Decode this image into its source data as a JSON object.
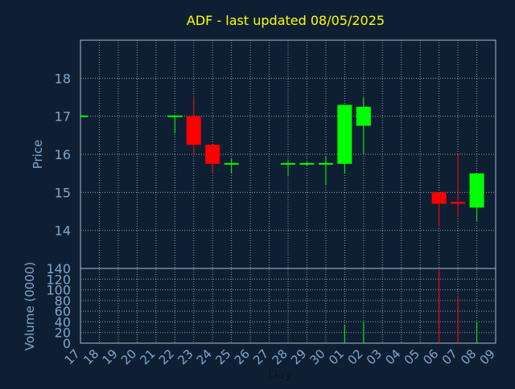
{
  "chart_data": {
    "type": "candlestick",
    "title": "ADF - last updated 08/05/2025",
    "xlabel": "Day",
    "price_axis": {
      "label": "Price",
      "ylim": [
        13,
        19
      ],
      "ticks": [
        "14",
        "15",
        "16",
        "17",
        "18"
      ]
    },
    "volume_axis": {
      "label": "Volume (0000)",
      "ylim": [
        0,
        140
      ],
      "ticks": [
        "0",
        "20",
        "40",
        "60",
        "80",
        "100",
        "120",
        "140"
      ]
    },
    "grid": true,
    "x_ticks": [
      "17",
      "18",
      "19",
      "20",
      "21",
      "22",
      "23",
      "24",
      "25",
      "26",
      "27",
      "28",
      "29",
      "30",
      "01",
      "02",
      "03",
      "04",
      "05",
      "06",
      "07",
      "08",
      "09"
    ],
    "candles": [
      {
        "day": "17",
        "open": 17.0,
        "high": 17.0,
        "low": 17.0,
        "close": 17.0,
        "volume": 0
      },
      {
        "day": "22",
        "open": 17.0,
        "high": 17.0,
        "low": 16.55,
        "close": 17.0,
        "volume": 0
      },
      {
        "day": "23",
        "open": 17.0,
        "high": 17.5,
        "low": 16.0,
        "close": 16.25,
        "volume": 1
      },
      {
        "day": "24",
        "open": 16.25,
        "high": 16.25,
        "low": 15.5,
        "close": 15.75,
        "volume": 2
      },
      {
        "day": "25",
        "open": 15.75,
        "high": 15.9,
        "low": 15.5,
        "close": 15.75,
        "volume": 1
      },
      {
        "day": "28",
        "open": 15.75,
        "high": 15.85,
        "low": 15.45,
        "close": 15.75,
        "volume": 0
      },
      {
        "day": "29",
        "open": 15.75,
        "high": 15.8,
        "low": 15.7,
        "close": 15.75,
        "volume": 0
      },
      {
        "day": "30",
        "open": 15.75,
        "high": 15.95,
        "low": 15.2,
        "close": 15.75,
        "volume": 0
      },
      {
        "day": "01",
        "open": 15.75,
        "high": 17.3,
        "low": 15.5,
        "close": 17.3,
        "volume": 35
      },
      {
        "day": "02",
        "open": 16.75,
        "high": 17.5,
        "low": 16.0,
        "close": 17.25,
        "volume": 40
      },
      {
        "day": "06",
        "open": 15.0,
        "high": 15.0,
        "low": 14.1,
        "close": 14.7,
        "volume": 140
      },
      {
        "day": "07",
        "open": 14.75,
        "high": 16.0,
        "low": 14.35,
        "close": 14.7,
        "volume": 85
      },
      {
        "day": "08",
        "open": 14.6,
        "high": 15.5,
        "low": 14.25,
        "close": 15.5,
        "volume": 40
      }
    ],
    "colors": {
      "up": "#00ff00",
      "down": "#ff0000",
      "background": "#0f1f33",
      "title": "#ffff00",
      "axis_text": "#7ea6d0",
      "frame": "#a9bcd0",
      "grid": "#ffffff"
    }
  }
}
